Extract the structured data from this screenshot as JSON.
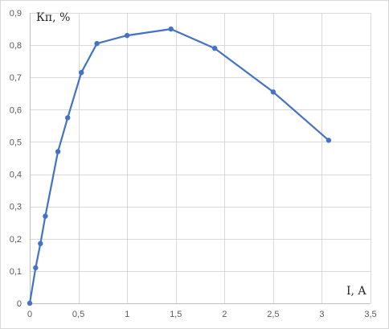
{
  "chart_data": {
    "type": "scatter",
    "title": "",
    "xlabel": "I, A",
    "ylabel": "Кп, %",
    "xlim": [
      0,
      3.5
    ],
    "ylim": [
      0,
      0.9
    ],
    "x_ticks": [
      "0",
      "0,5",
      "1",
      "1,5",
      "2",
      "2,5",
      "3",
      "3,5"
    ],
    "y_ticks": [
      "0",
      "0,1",
      "0,2",
      "0,3",
      "0,4",
      "0,5",
      "0,6",
      "0,7",
      "0,8",
      "0,9"
    ],
    "grid": true,
    "legend": false,
    "series": [
      {
        "color": "#4472c4",
        "markers": true,
        "smooth": false,
        "x": [
          0,
          0.06,
          0.11,
          0.16,
          0.29,
          0.39,
          0.53,
          0.69,
          1.0,
          1.45,
          1.9,
          2.5,
          3.07
        ],
        "y": [
          0,
          0.11,
          0.185,
          0.27,
          0.47,
          0.575,
          0.715,
          0.805,
          0.83,
          0.85,
          0.79,
          0.655,
          0.505
        ]
      }
    ]
  }
}
